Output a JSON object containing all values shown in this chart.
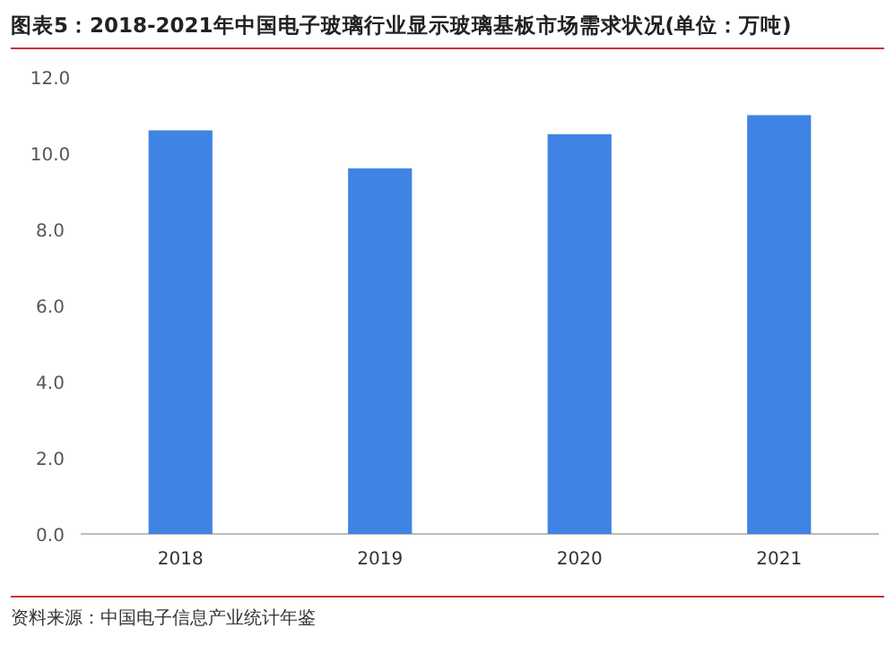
{
  "chart_data": {
    "type": "bar",
    "title": "图表5：2018-2021年中国电子玻璃行业显示玻璃基板市场需求状况(单位：万吨)",
    "categories": [
      "2018",
      "2019",
      "2020",
      "2021"
    ],
    "values": [
      10.6,
      9.6,
      10.5,
      11.0
    ],
    "color": "#3f84e5",
    "ylim": [
      0,
      12
    ],
    "yticks": [
      {
        "value": 0,
        "label": "0.0"
      },
      {
        "value": 2,
        "label": "2.0"
      },
      {
        "value": 4,
        "label": "4.0"
      },
      {
        "value": 6,
        "label": "6.0"
      },
      {
        "value": 8,
        "label": "8.0"
      },
      {
        "value": 10,
        "label": "10.0"
      },
      {
        "value": 12,
        "label": "12.0"
      }
    ],
    "grid": false,
    "annotations": [
      "资料来源：中国电子信息产业统计年鉴"
    ]
  }
}
